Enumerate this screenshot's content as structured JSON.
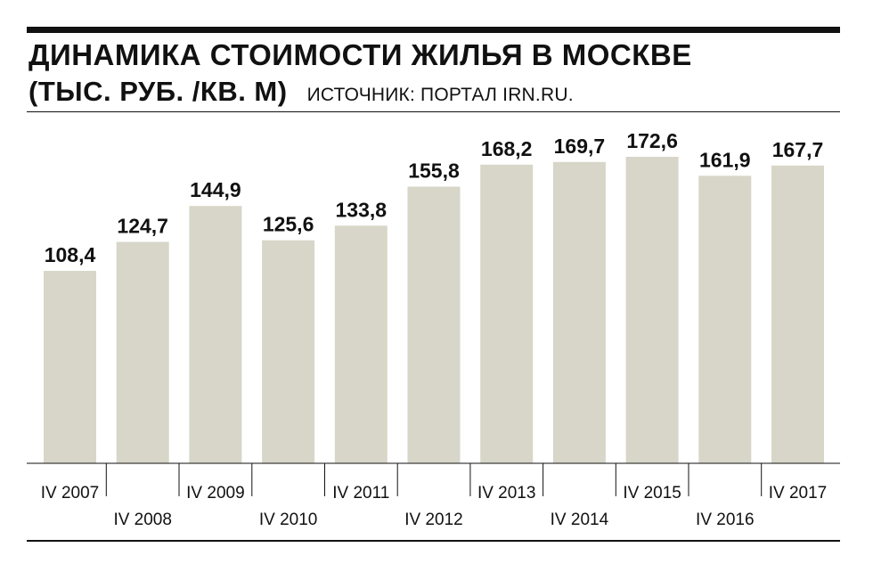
{
  "header": {
    "title": "ДИНАМИКА СТОИМОСТИ ЖИЛЬЯ В МОСКВЕ",
    "subtitle": "(ТЫС. РУБ. /КВ. М)",
    "source": "ИСТОЧНИК: ПОРТАЛ IRN.RU."
  },
  "chart_data": {
    "type": "bar",
    "title": "ДИНАМИКА СТОИМОСТИ ЖИЛЬЯ В МОСКВЕ",
    "subtitle": "(ТЫС. РУБ. /КВ. М)",
    "categories": [
      "IV 2007",
      "IV 2008",
      "IV 2009",
      "IV 2010",
      "IV 2011",
      "IV 2012",
      "IV 2013",
      "IV 2014",
      "IV 2015",
      "IV 2016",
      "IV 2017"
    ],
    "values": [
      108.4,
      124.7,
      144.9,
      125.6,
      133.8,
      155.8,
      168.2,
      169.7,
      172.6,
      161.9,
      167.7
    ],
    "value_labels": [
      "108,4",
      "124,7",
      "144,9",
      "125,6",
      "133,8",
      "155,8",
      "168,2",
      "169,7",
      "172,6",
      "161,9",
      "167,7"
    ],
    "ylim": [
      0,
      172.6
    ],
    "grid": false,
    "bar_color": "#d7d6c8"
  }
}
